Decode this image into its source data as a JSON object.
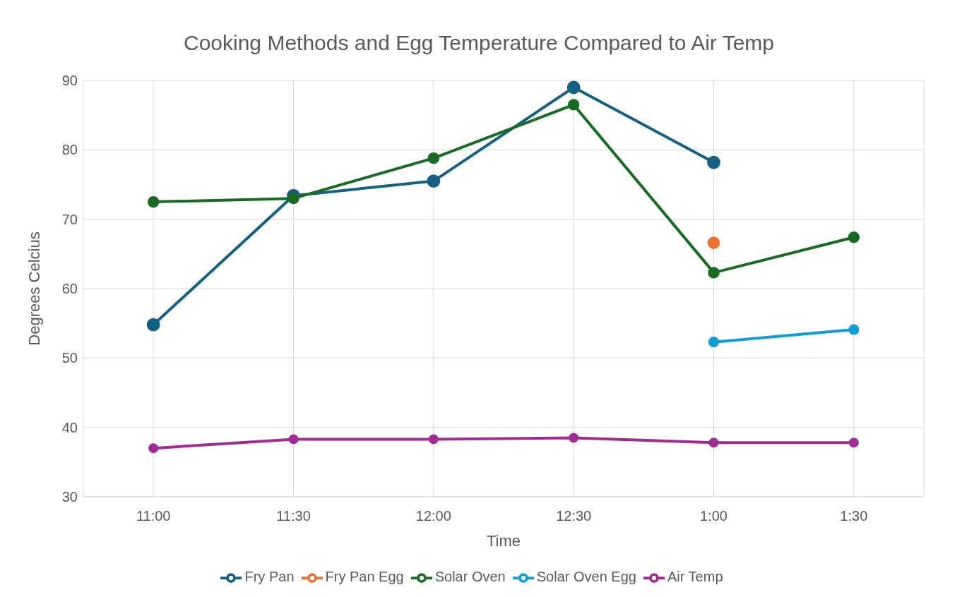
{
  "chart_data": {
    "type": "line",
    "title": "Cooking Methods and Egg Temperature Compared to Air Temp",
    "xlabel": "Time",
    "ylabel": "Degrees Celcius",
    "categories": [
      "11:00",
      "11:30",
      "12:00",
      "12:30",
      "1:00",
      "1:30"
    ],
    "series": [
      {
        "name": "Fry Pan",
        "color": "#156082",
        "values": [
          54.8,
          73.4,
          75.5,
          89.0,
          78.2,
          null
        ]
      },
      {
        "name": "Fry Pan Egg",
        "color": "#e97132",
        "values": [
          null,
          null,
          null,
          null,
          66.6,
          null
        ]
      },
      {
        "name": "Solar Oven",
        "color": "#196b24",
        "values": [
          72.5,
          73.0,
          78.8,
          86.5,
          62.3,
          67.4
        ]
      },
      {
        "name": "Solar Oven Egg",
        "color": "#0f9ed5",
        "values": [
          null,
          null,
          null,
          null,
          52.3,
          54.1
        ]
      },
      {
        "name": "Air Temp",
        "color": "#a02b93",
        "values": [
          37.0,
          38.3,
          38.3,
          38.5,
          37.8,
          37.8
        ]
      }
    ],
    "ylim": [
      30,
      90
    ],
    "yticks": [
      30,
      40,
      50,
      60,
      70,
      80,
      90
    ],
    "grid": true,
    "legend": "bottom",
    "marker": "circle",
    "line_style": "solid"
  }
}
